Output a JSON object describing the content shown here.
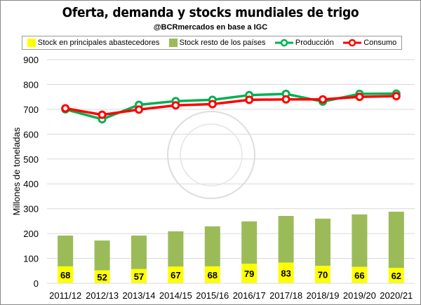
{
  "chart_data": {
    "type": "bar",
    "title": "Oferta, demanda y stocks mundiales de trigo",
    "subtitle": "@BCRmercados en base a IGC",
    "ylabel": "Millones de toneladas",
    "xlabel": "",
    "ylim": [
      0,
      900
    ],
    "yticks": [
      0,
      100,
      200,
      300,
      400,
      500,
      600,
      700,
      800,
      900
    ],
    "grid": true,
    "legend_position": "top",
    "categories": [
      "2011/12",
      "2012/13",
      "2013/14",
      "2014/15",
      "2015/16",
      "2016/17",
      "2017/18",
      "2018/19",
      "2019/20",
      "2020/21"
    ],
    "series": [
      {
        "name": "Stock en principales abastecedores",
        "type": "stacked-bar",
        "color": "#ffff00",
        "values": [
          68,
          52,
          57,
          67,
          68,
          79,
          83,
          70,
          66,
          62
        ]
      },
      {
        "name": "Stock resto de los países",
        "type": "stacked-bar",
        "color": "#9bbb59",
        "values": [
          124,
          120,
          135,
          142,
          161,
          170,
          188,
          190,
          211,
          226
        ]
      },
      {
        "name": "Producción",
        "type": "line",
        "color": "#00b050",
        "values": [
          700,
          660,
          718,
          733,
          738,
          757,
          762,
          731,
          762,
          763
        ]
      },
      {
        "name": "Consumo",
        "type": "line",
        "color": "#ff0000",
        "values": [
          704,
          678,
          699,
          716,
          721,
          738,
          740,
          740,
          750,
          753
        ]
      }
    ]
  }
}
